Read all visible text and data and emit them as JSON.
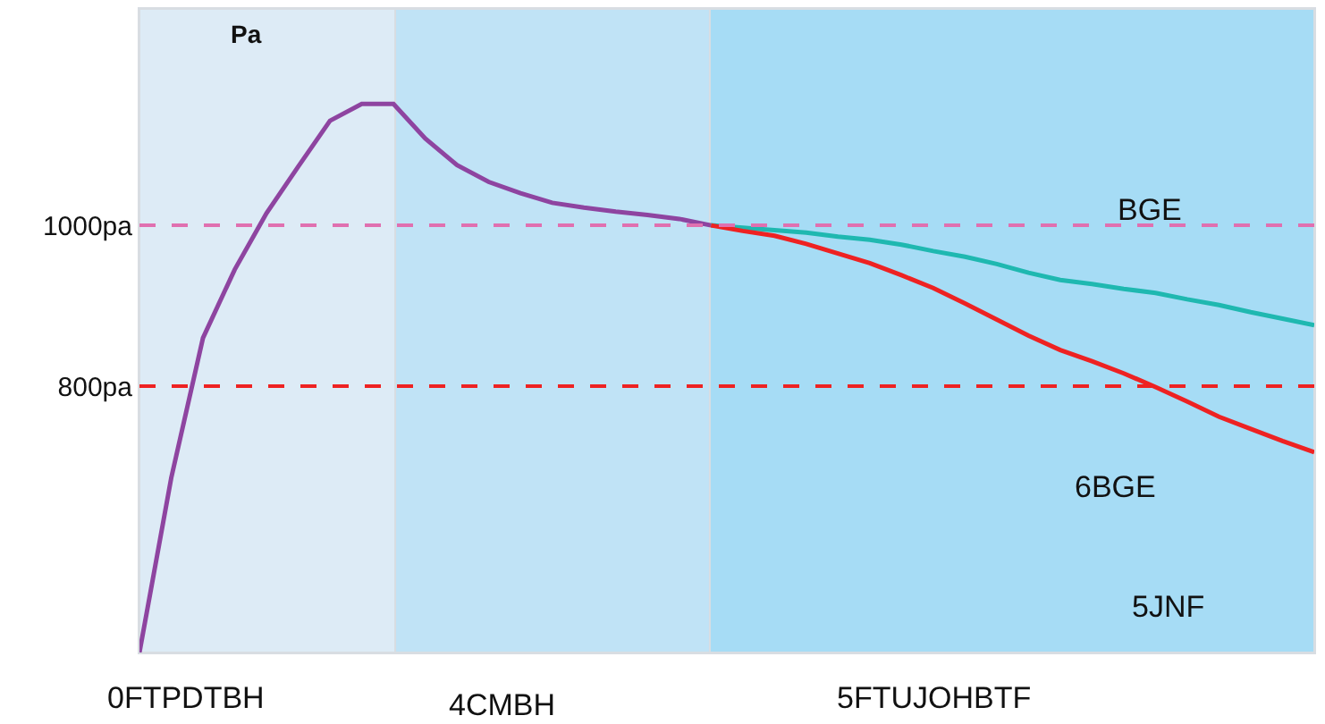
{
  "chart_data": {
    "type": "line",
    "xlabel": "5JNF",
    "annotations": [
      "Pa",
      "BGE",
      "6BGE",
      "0FTPDTBH",
      "4CMBH",
      "5FTUJOHBTF"
    ],
    "categories": [
      null,
      null,
      null,
      null,
      null,
      null,
      null,
      null,
      null,
      null,
      null,
      null,
      null,
      null,
      null,
      null,
      null,
      null,
      null,
      null,
      null,
      null,
      null,
      null,
      null,
      null,
      null,
      null,
      null,
      null,
      null,
      null,
      null,
      null,
      null,
      null,
      null,
      null
    ],
    "ylim": [
      469,
      1269
    ],
    "yticks": [
      {
        "value": 800,
        "label": "800pa"
      },
      {
        "value": 1000,
        "label": "1000pa"
      }
    ],
    "tick_labels": "y",
    "grid": false,
    "marker": "none",
    "line_style": "solid",
    "series": [
      {
        "color": "#8e44a0",
        "values": [
          469,
          686,
          860,
          945,
          1015,
          1073,
          1130,
          1151,
          1151,
          1108,
          1075,
          1054,
          1040,
          1028,
          1022,
          1017,
          1013,
          1008,
          1000,
          null,
          null,
          null,
          null,
          null,
          null,
          null,
          null,
          null,
          null,
          null,
          null,
          null,
          null,
          null,
          null,
          null,
          null,
          null
        ]
      },
      {
        "color": "#1fb8b0",
        "values": [
          null,
          null,
          null,
          null,
          null,
          null,
          null,
          null,
          null,
          null,
          null,
          null,
          null,
          null,
          null,
          null,
          null,
          null,
          1000,
          997,
          994,
          991,
          986,
          982,
          976,
          968,
          961,
          952,
          941,
          932,
          927,
          921,
          916,
          908,
          901,
          892,
          884,
          876
        ]
      },
      {
        "color": "#ee2222",
        "values": [
          null,
          null,
          null,
          null,
          null,
          null,
          null,
          null,
          null,
          null,
          null,
          null,
          null,
          null,
          null,
          null,
          null,
          null,
          1000,
          993,
          987,
          977,
          965,
          953,
          938,
          922,
          903,
          883,
          863,
          845,
          831,
          816,
          799,
          781,
          762,
          747,
          732,
          718
        ]
      }
    ],
    "ref_lines": [
      {
        "axis": "y",
        "value": 1000,
        "color": "#e070b0",
        "line_style": "dashed"
      },
      {
        "axis": "y",
        "value": 800,
        "color": "#ee2222",
        "line_style": "dashed"
      }
    ]
  }
}
